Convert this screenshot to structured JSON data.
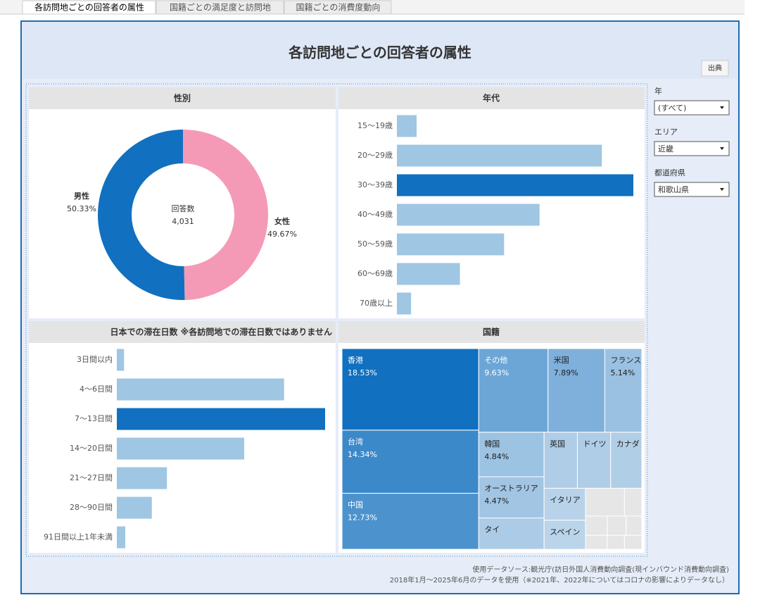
{
  "tabs": [
    "各訪問地ごとの回答者の属性",
    "国籍ごとの満足度と訪問地",
    "国籍ごとの消費度動向"
  ],
  "title": "各訪問地ごとの回答者の属性",
  "source_button": "出典",
  "filters": [
    {
      "label": "年",
      "value": "(すべて)"
    },
    {
      "label": "エリア",
      "value": "近畿"
    },
    {
      "label": "都道府県",
      "value": "和歌山県"
    }
  ],
  "chart_data": [
    {
      "type": "donut",
      "title": "性別",
      "categories": [
        "男性",
        "女性"
      ],
      "values": [
        50.33,
        49.67
      ],
      "value_labels": [
        "50.33%",
        "49.67%"
      ],
      "colors": [
        "#1170bf",
        "#f49ab7"
      ],
      "center_label": "回答数",
      "total": 4031,
      "total_label": "4,031"
    },
    {
      "type": "bar",
      "title": "年代",
      "categories": [
        "15〜19歳",
        "20〜29歳",
        "30〜39歳",
        "40〜49歳",
        "50〜59歳",
        "60〜69歳",
        "70歳以上"
      ],
      "values": [
        2.5,
        26.0,
        30.0,
        18.1,
        13.6,
        8.0,
        1.8
      ],
      "colors": [
        "#9fc6e3",
        "#9fc6e3",
        "#1170bf",
        "#9fc6e3",
        "#9fc6e3",
        "#9fc6e3",
        "#9fc6e3"
      ],
      "xlim": [
        0,
        30
      ]
    },
    {
      "type": "bar",
      "title": "日本での滞在日数 ※各訪問地での滞在日数ではありません",
      "categories": [
        "3日間以内",
        "4〜6日間",
        "7〜13日間",
        "14〜20日間",
        "21〜27日間",
        "28〜90日間",
        "91日間以上1年未満"
      ],
      "values": [
        1.2,
        27.7,
        34.5,
        21.1,
        8.3,
        5.8,
        1.4
      ],
      "colors": [
        "#9fc6e3",
        "#9fc6e3",
        "#1170bf",
        "#9fc6e3",
        "#9fc6e3",
        "#9fc6e3",
        "#9fc6e3"
      ],
      "xlim": [
        0,
        34.5
      ]
    },
    {
      "type": "treemap",
      "title": "国籍",
      "categories": [
        "香港",
        "台湾",
        "中国",
        "その他",
        "米国",
        "フランス",
        "韓国",
        "オーストラリア",
        "タイ",
        "英国",
        "ドイツ",
        "カナダ",
        "イタリア",
        "スペイン",
        null,
        null,
        null,
        null,
        null,
        null,
        null,
        null
      ],
      "values": [
        18.53,
        14.34,
        12.73,
        9.63,
        7.89,
        5.14,
        4.84,
        4.47,
        3.4,
        3.1,
        3.1,
        2.9,
        2.2,
        2.0,
        1.8,
        0.8,
        0.7,
        0.6,
        0.5,
        0.5,
        0.4,
        0.4
      ],
      "value_labels": [
        "18.53%",
        "14.34%",
        "12.73%",
        "9.63%",
        "7.89%",
        "5.14%",
        "4.84%",
        "4.47%",
        null,
        null,
        null,
        null,
        null,
        null,
        null,
        null,
        null,
        null,
        null,
        null,
        null,
        null
      ]
    }
  ],
  "footer": [
    "使用データソース:観光庁(訪日外国人消費動向調査(現インバウンド消費動向調査)",
    "2018年1月～2025年6月のデータを使用（※2021年、2022年についてはコロナの影響によりデータなし）"
  ]
}
